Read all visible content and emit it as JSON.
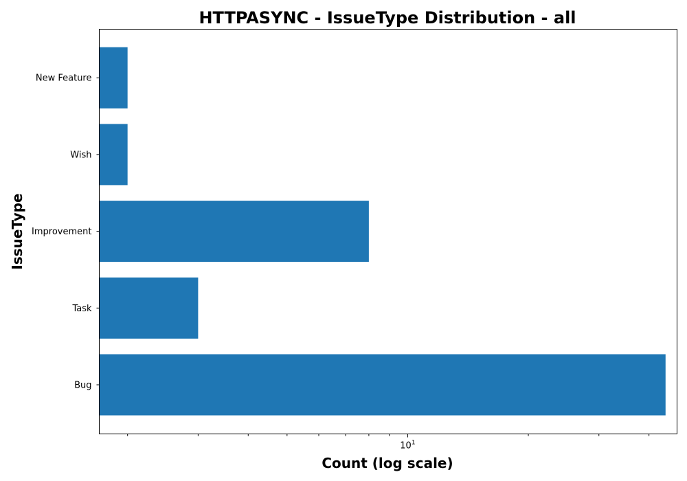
{
  "chart_data": {
    "type": "bar",
    "orientation": "horizontal",
    "title": "HTTPASYNC - IssueType Distribution - all",
    "xlabel": "Count (log scale)",
    "ylabel": "IssueType",
    "x_scale": "log",
    "xlim": [
      1.7,
      47
    ],
    "categories": [
      "Bug",
      "Task",
      "Improvement",
      "Wish",
      "New Feature"
    ],
    "values": [
      44,
      3,
      8,
      2,
      2
    ],
    "x_major_ticks": [
      {
        "value": 10,
        "base": "10",
        "exponent": "1"
      }
    ],
    "x_minor_ticks": [
      2,
      3,
      4,
      5,
      6,
      7,
      8,
      9,
      20,
      30,
      40
    ],
    "bar_color": "#1f77b4",
    "grid": false,
    "legend": "none"
  }
}
